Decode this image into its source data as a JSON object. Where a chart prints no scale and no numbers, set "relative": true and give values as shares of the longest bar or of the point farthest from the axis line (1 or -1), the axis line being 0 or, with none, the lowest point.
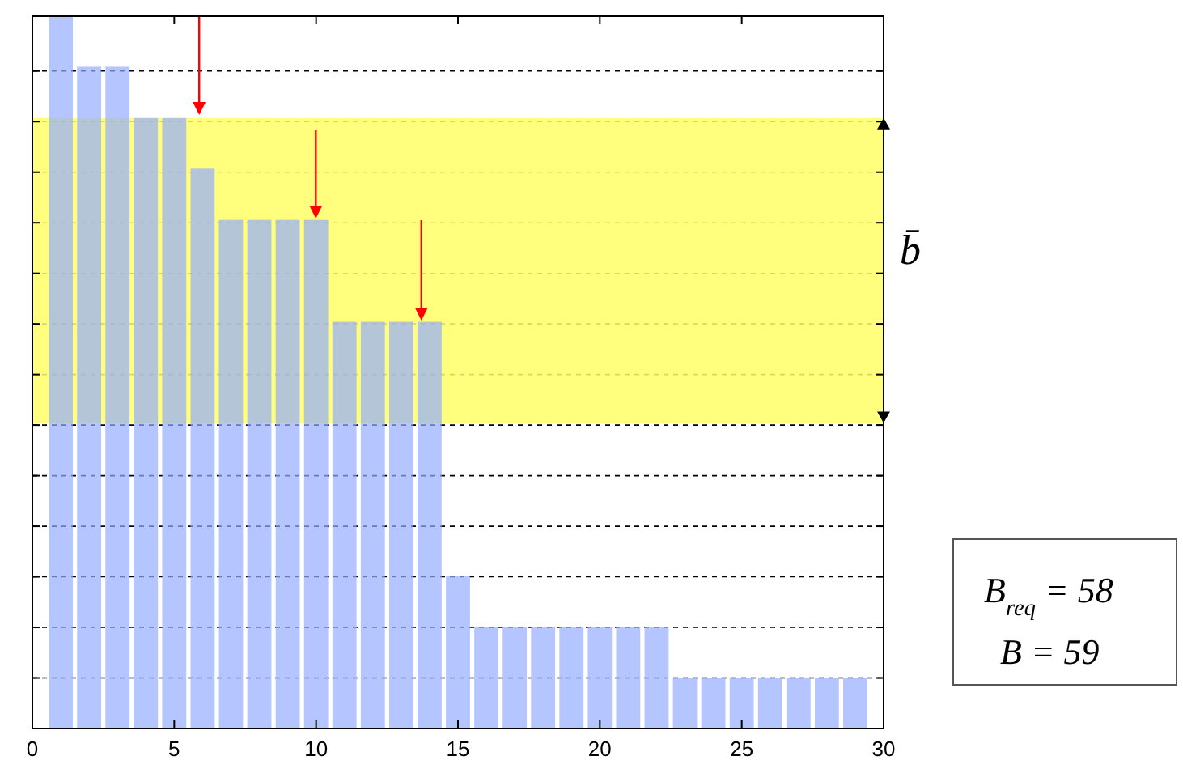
{
  "chart_data": {
    "type": "bar",
    "relative": true,
    "x": [
      1,
      2,
      3,
      4,
      5,
      6,
      7,
      8,
      9,
      10,
      11,
      12,
      13,
      14,
      15,
      16,
      17,
      18,
      19,
      20,
      21,
      22,
      23,
      24,
      25,
      26,
      27,
      28,
      29
    ],
    "values": [
      1,
      0.929,
      0.929,
      0.857,
      0.857,
      0.786,
      0.714,
      0.714,
      0.714,
      0.714,
      0.571,
      0.571,
      0.571,
      0.571,
      0.214,
      0.143,
      0.143,
      0.143,
      0.143,
      0.143,
      0.143,
      0.143,
      0.071,
      0.071,
      0.071,
      0.071,
      0.071,
      0.071,
      0.071
    ],
    "color": "#95adff",
    "xlim": [
      0,
      30
    ],
    "xticks": [
      0,
      5,
      10,
      15,
      20,
      25,
      30
    ],
    "grid": "y",
    "tick_labels": "x",
    "bands": [
      {
        "axis": "y",
        "from": 0.429,
        "to": 0.857,
        "label": "b̄",
        "color": "#ffff66"
      }
    ],
    "annotations": [
      "B$_{req}$ =  58",
      "B  =  59"
    ]
  }
}
